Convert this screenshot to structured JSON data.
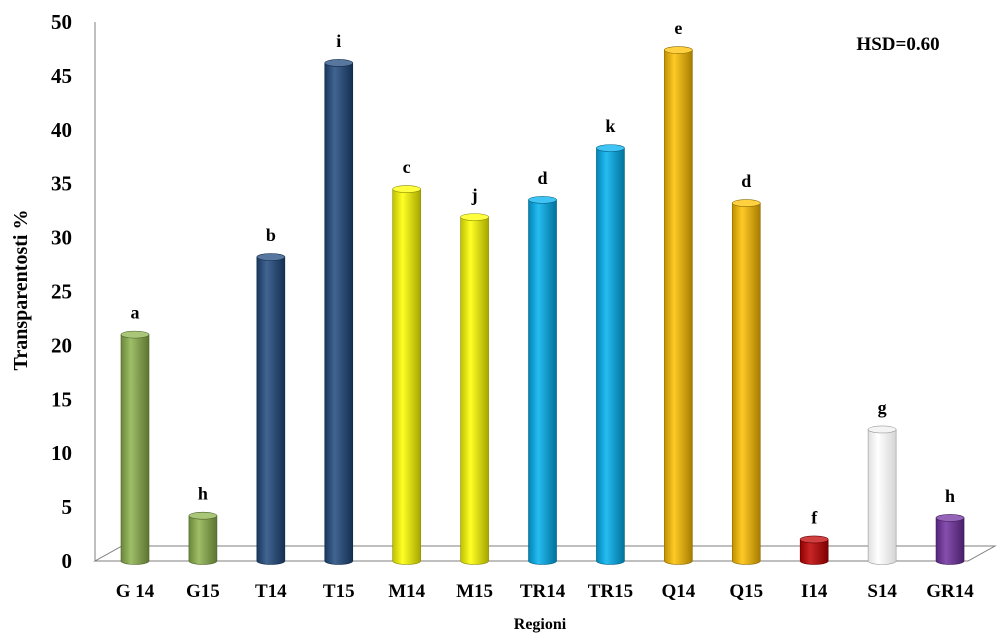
{
  "chart_data": {
    "type": "bar",
    "style": "3d-cylinder",
    "categories": [
      "G 14",
      "G15",
      "T14",
      "T15",
      "M14",
      "M15",
      "TR14",
      "TR15",
      "Q14",
      "Q15",
      "I14",
      "S14",
      "GR14"
    ],
    "values": [
      21,
      4.2,
      28.2,
      46.2,
      34.5,
      31.9,
      33.5,
      38.3,
      47.4,
      33.2,
      2,
      12.2,
      4
    ],
    "letters": [
      "a",
      "h",
      "b",
      "i",
      "c",
      "j",
      "d",
      "k",
      "e",
      "d",
      "f",
      "g",
      "h"
    ],
    "colors": [
      "#8db34c",
      "#8db34c",
      "#1f497d",
      "#1f497d",
      "#ffff00",
      "#ffff00",
      "#00b0f0",
      "#00b0f0",
      "#ffc000",
      "#ffc000",
      "#c00000",
      "#ffffff",
      "#7030a0"
    ],
    "xlabel": "Regioni",
    "ylabel": "Transparentosti %",
    "ylim": [
      0,
      50
    ],
    "yticks": [
      "0",
      "5",
      "10",
      "15",
      "20",
      "25",
      "30",
      "35",
      "40",
      "45",
      "50"
    ],
    "annotation": "HSD=0.60",
    "grid": false,
    "legend": "none"
  }
}
